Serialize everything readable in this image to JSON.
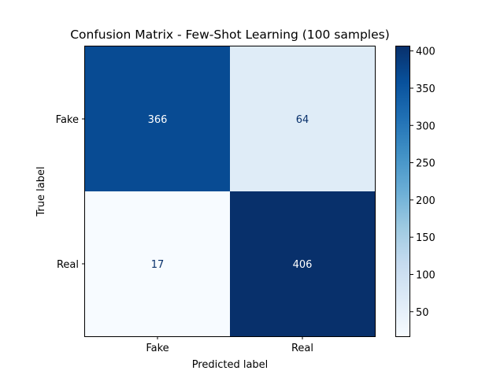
{
  "chart_data": {
    "type": "heatmap",
    "title": "Confusion Matrix - Few-Shot Learning (100 samples)",
    "xlabel": "Predicted label",
    "ylabel": "True label",
    "x_categories": [
      "Fake",
      "Real"
    ],
    "y_categories": [
      "Fake",
      "Real"
    ],
    "values": [
      [
        366,
        64
      ],
      [
        17,
        406
      ]
    ],
    "colormap": "Blues",
    "colorbar": {
      "ticks": [
        50,
        100,
        150,
        200,
        250,
        300,
        350,
        400
      ],
      "range": [
        17,
        406
      ]
    },
    "grid": false
  }
}
